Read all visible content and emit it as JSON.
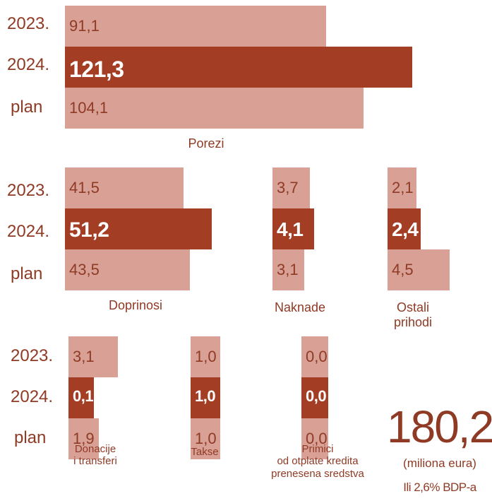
{
  "colors": {
    "light": "#d9a196",
    "dark": "#a33e24",
    "text": "#8f3a24"
  },
  "row_labels": [
    "2023.",
    "2024.",
    "plan"
  ],
  "chart_data": [
    {
      "type": "bar",
      "title": "Porezi",
      "categories": [
        "2023.",
        "2024.",
        "plan"
      ],
      "values": [
        91.1,
        121.3,
        104.1
      ],
      "labels": [
        "91,1",
        "121,3",
        "104,1"
      ]
    },
    {
      "type": "bar",
      "title": "Doprinosi",
      "categories": [
        "2023.",
        "2024.",
        "plan"
      ],
      "values": [
        41.5,
        51.2,
        43.5
      ],
      "labels": [
        "41,5",
        "51,2",
        "43,5"
      ]
    },
    {
      "type": "bar",
      "title": "Naknade",
      "categories": [
        "2023.",
        "2024.",
        "plan"
      ],
      "values": [
        3.7,
        4.1,
        3.1
      ],
      "labels": [
        "3,7",
        "4,1",
        "3,1"
      ]
    },
    {
      "type": "bar",
      "title": "Ostali\nprihodi",
      "categories": [
        "2023.",
        "2024.",
        "plan"
      ],
      "values": [
        2.1,
        2.4,
        4.5
      ],
      "labels": [
        "2,1",
        "2,4",
        "4,5"
      ]
    },
    {
      "type": "bar",
      "title": "Donacije\ni transferi",
      "categories": [
        "2023.",
        "2024.",
        "plan"
      ],
      "values": [
        3.1,
        0.1,
        1.9
      ],
      "labels": [
        "3,1",
        "0,1",
        "1,9"
      ]
    },
    {
      "type": "bar",
      "title": "Takse",
      "categories": [
        "2023.",
        "2024.",
        "plan"
      ],
      "values": [
        1.0,
        1.0,
        1.0
      ],
      "labels": [
        "1,0",
        "1,0",
        "1,0"
      ]
    },
    {
      "type": "bar",
      "title": "Primici\nod otplate kredita\nprenesena sredstva",
      "categories": [
        "2023.",
        "2024.",
        "plan"
      ],
      "values": [
        0.0,
        0.0,
        0.0
      ],
      "labels": [
        "0,0",
        "0,0",
        "0,0"
      ]
    }
  ],
  "total": {
    "value": "180,2",
    "unit": "(miliona eura)",
    "note": "Ili 2,6% BDP-a"
  }
}
